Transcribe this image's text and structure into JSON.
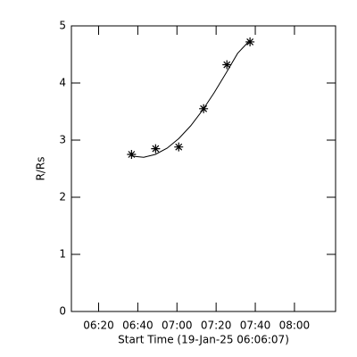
{
  "chart_data": {
    "type": "scatter",
    "x_label": "Start Time (19-Jan-25 06:06:07)",
    "y_label": "R/Rs",
    "color": "#000000",
    "x": [
      396.8,
      409.1,
      420.9,
      433.6,
      445.5,
      457.3
    ],
    "values": [
      2.75,
      2.85,
      2.88,
      3.55,
      4.32,
      4.72
    ],
    "fit": {
      "x": [
        396.8,
        403,
        409,
        415,
        421,
        427,
        433,
        439,
        445,
        451,
        457.3
      ],
      "values": [
        2.72,
        2.7,
        2.75,
        2.86,
        3.03,
        3.25,
        3.52,
        3.83,
        4.17,
        4.52,
        4.75
      ]
    },
    "xlim": [
      366.1,
      501
    ],
    "xticks": [
      {
        "value": 380,
        "label": "06:20"
      },
      {
        "value": 400,
        "label": "06:40"
      },
      {
        "value": 420,
        "label": "07:00"
      },
      {
        "value": 440,
        "label": "07:20"
      },
      {
        "value": 460,
        "label": "07:40"
      },
      {
        "value": 480,
        "label": "08:00"
      }
    ],
    "ylim": [
      0,
      5
    ],
    "yticks": [
      0,
      1,
      2,
      3,
      4,
      5
    ]
  }
}
